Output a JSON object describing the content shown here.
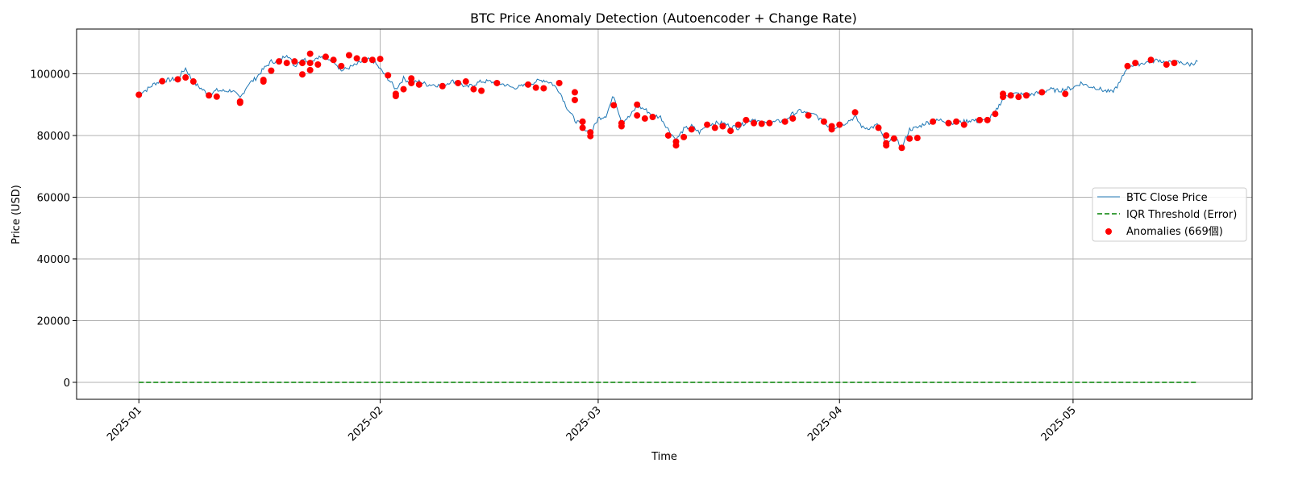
{
  "chart_data": {
    "type": "line",
    "title": "BTC Price Anomaly Detection (Autoencoder + Change Rate)",
    "xlabel": "Time",
    "ylabel": "Price (USD)",
    "x_tick_labels": [
      "2025-01",
      "2025-02",
      "2025-03",
      "2025-04",
      "2025-05"
    ],
    "x_tick_dates": [
      "2025-01-01",
      "2025-02-01",
      "2025-03-01",
      "2025-04-01",
      "2025-05-01"
    ],
    "xlim": [
      "2024-12-24",
      "2025-05-24"
    ],
    "ylim": [
      -5500,
      114500
    ],
    "y_ticks": [
      0,
      20000,
      40000,
      60000,
      80000,
      100000
    ],
    "y_tick_labels": [
      "0",
      "20000",
      "40000",
      "60000",
      "80000",
      "100000"
    ],
    "grid": true,
    "legend_position": "center-right",
    "legend": [
      {
        "label": "BTC Close Price",
        "style": "line",
        "color": "#1f77b4"
      },
      {
        "label": "IQR Threshold (Error)",
        "style": "dashed",
        "color": "#008000"
      },
      {
        "label": "Anomalies (669個)",
        "style": "marker",
        "color": "#ff0000"
      }
    ],
    "series": [
      {
        "name": "BTC Close Price",
        "color": "#1f77b4",
        "points": [
          [
            "2025-01-01",
            93800
          ],
          [
            "2025-01-02",
            94800
          ],
          [
            "2025-01-03",
            96800
          ],
          [
            "2025-01-04",
            97800
          ],
          [
            "2025-01-05",
            98000
          ],
          [
            "2025-01-06",
            98600
          ],
          [
            "2025-01-07",
            101800
          ],
          [
            "2025-01-08",
            97200
          ],
          [
            "2025-01-09",
            95200
          ],
          [
            "2025-01-10",
            93200
          ],
          [
            "2025-01-11",
            94600
          ],
          [
            "2025-01-12",
            94400
          ],
          [
            "2025-01-13",
            94600
          ],
          [
            "2025-01-14",
            92000
          ],
          [
            "2025-01-15",
            96500
          ],
          [
            "2025-01-16",
            98500
          ],
          [
            "2025-01-17",
            101500
          ],
          [
            "2025-01-18",
            104000
          ],
          [
            "2025-01-19",
            104000
          ],
          [
            "2025-01-20",
            106500
          ],
          [
            "2025-01-21",
            102500
          ],
          [
            "2025-01-22",
            105000
          ],
          [
            "2025-01-23",
            103800
          ],
          [
            "2025-01-24",
            105500
          ],
          [
            "2025-01-25",
            105000
          ],
          [
            "2025-01-26",
            104500
          ],
          [
            "2025-01-27",
            101000
          ],
          [
            "2025-01-28",
            102000
          ],
          [
            "2025-01-29",
            103000
          ],
          [
            "2025-01-30",
            104500
          ],
          [
            "2025-01-31",
            104500
          ],
          [
            "2025-02-01",
            101500
          ],
          [
            "2025-02-02",
            98500
          ],
          [
            "2025-02-03",
            95000
          ],
          [
            "2025-02-04",
            98500
          ],
          [
            "2025-02-05",
            97000
          ],
          [
            "2025-02-06",
            97500
          ],
          [
            "2025-02-07",
            96500
          ],
          [
            "2025-02-08",
            96500
          ],
          [
            "2025-02-09",
            96000
          ],
          [
            "2025-02-10",
            97500
          ],
          [
            "2025-02-11",
            97500
          ],
          [
            "2025-02-12",
            95500
          ],
          [
            "2025-02-13",
            96500
          ],
          [
            "2025-02-14",
            97500
          ],
          [
            "2025-02-15",
            97500
          ],
          [
            "2025-02-16",
            97000
          ],
          [
            "2025-02-17",
            96500
          ],
          [
            "2025-02-18",
            95500
          ],
          [
            "2025-02-19",
            95800
          ],
          [
            "2025-02-20",
            96500
          ],
          [
            "2025-02-21",
            97500
          ],
          [
            "2025-02-22",
            98000
          ],
          [
            "2025-02-23",
            97000
          ],
          [
            "2025-02-24",
            94500
          ],
          [
            "2025-02-25",
            89000
          ],
          [
            "2025-02-26",
            85000
          ],
          [
            "2025-02-27",
            83000
          ],
          [
            "2025-02-28",
            80500
          ],
          [
            "2025-03-01",
            85500
          ],
          [
            "2025-03-02",
            86500
          ],
          [
            "2025-03-03",
            93000
          ],
          [
            "2025-03-04",
            84500
          ],
          [
            "2025-03-05",
            86000
          ],
          [
            "2025-03-06",
            89500
          ],
          [
            "2025-03-07",
            88500
          ],
          [
            "2025-03-08",
            86500
          ],
          [
            "2025-03-09",
            86000
          ],
          [
            "2025-03-10",
            82000
          ],
          [
            "2025-03-11",
            78500
          ],
          [
            "2025-03-12",
            82000
          ],
          [
            "2025-03-13",
            83000
          ],
          [
            "2025-03-14",
            81000
          ],
          [
            "2025-03-15",
            83500
          ],
          [
            "2025-03-16",
            84000
          ],
          [
            "2025-03-17",
            84000
          ],
          [
            "2025-03-18",
            83000
          ],
          [
            "2025-03-19",
            82500
          ],
          [
            "2025-03-20",
            84500
          ],
          [
            "2025-03-21",
            85500
          ],
          [
            "2025-03-22",
            84000
          ],
          [
            "2025-03-23",
            84000
          ],
          [
            "2025-03-24",
            84500
          ],
          [
            "2025-03-25",
            85000
          ],
          [
            "2025-03-26",
            87000
          ],
          [
            "2025-03-27",
            88000
          ],
          [
            "2025-03-28",
            87000
          ],
          [
            "2025-03-29",
            86500
          ],
          [
            "2025-03-30",
            84000
          ],
          [
            "2025-03-31",
            82500
          ],
          [
            "2025-04-01",
            83000
          ],
          [
            "2025-04-02",
            84500
          ],
          [
            "2025-04-03",
            86000
          ],
          [
            "2025-04-04",
            82500
          ],
          [
            "2025-04-05",
            82500
          ],
          [
            "2025-04-06",
            83500
          ],
          [
            "2025-04-07",
            76500
          ],
          [
            "2025-04-08",
            79500
          ],
          [
            "2025-04-09",
            76000
          ],
          [
            "2025-04-10",
            82000
          ],
          [
            "2025-04-11",
            82500
          ],
          [
            "2025-04-12",
            84000
          ],
          [
            "2025-04-13",
            84500
          ],
          [
            "2025-04-14",
            85000
          ],
          [
            "2025-04-15",
            84500
          ],
          [
            "2025-04-16",
            84000
          ],
          [
            "2025-04-17",
            84500
          ],
          [
            "2025-04-18",
            85000
          ],
          [
            "2025-04-19",
            84500
          ],
          [
            "2025-04-20",
            85000
          ],
          [
            "2025-04-21",
            87500
          ],
          [
            "2025-04-22",
            92000
          ],
          [
            "2025-04-23",
            93500
          ],
          [
            "2025-04-24",
            93500
          ],
          [
            "2025-04-25",
            93000
          ],
          [
            "2025-04-26",
            93500
          ],
          [
            "2025-04-27",
            94000
          ],
          [
            "2025-04-28",
            95000
          ],
          [
            "2025-04-29",
            94500
          ],
          [
            "2025-04-30",
            95000
          ],
          [
            "2025-05-01",
            95500
          ],
          [
            "2025-05-02",
            97000
          ],
          [
            "2025-05-03",
            96000
          ],
          [
            "2025-05-04",
            95500
          ],
          [
            "2025-05-05",
            94500
          ],
          [
            "2025-05-06",
            94000
          ],
          [
            "2025-05-07",
            97000
          ],
          [
            "2025-05-08",
            102500
          ],
          [
            "2025-05-09",
            103000
          ],
          [
            "2025-05-10",
            103500
          ],
          [
            "2025-05-11",
            104000
          ],
          [
            "2025-05-12",
            104500
          ],
          [
            "2025-05-13",
            103500
          ],
          [
            "2025-05-14",
            103800
          ],
          [
            "2025-05-15",
            103500
          ],
          [
            "2025-05-16",
            103000
          ],
          [
            "2025-05-17",
            104000
          ]
        ]
      },
      {
        "name": "IQR Threshold (Error)",
        "color": "#008000",
        "points": [
          [
            "2025-01-01",
            0
          ],
          [
            "2025-05-17",
            0
          ]
        ]
      },
      {
        "name": "Anomalies (669個)",
        "color": "#ff0000",
        "type": "scatter",
        "points": [
          [
            "2025-01-01",
            93200
          ],
          [
            "2025-01-04",
            97600
          ],
          [
            "2025-01-06",
            98200
          ],
          [
            "2025-01-07",
            98800
          ],
          [
            "2025-01-08",
            97500
          ],
          [
            "2025-01-10",
            93000
          ],
          [
            "2025-01-11",
            92600
          ],
          [
            "2025-01-14",
            91000
          ],
          [
            "2025-01-14",
            90600
          ],
          [
            "2025-01-17",
            98000
          ],
          [
            "2025-01-17",
            97500
          ],
          [
            "2025-01-18",
            101000
          ],
          [
            "2025-01-19",
            104000
          ],
          [
            "2025-01-20",
            103500
          ],
          [
            "2025-01-21",
            104000
          ],
          [
            "2025-01-22",
            103500
          ],
          [
            "2025-01-22",
            99800
          ],
          [
            "2025-01-23",
            106500
          ],
          [
            "2025-01-23",
            103500
          ],
          [
            "2025-01-23",
            101200
          ],
          [
            "2025-01-24",
            103000
          ],
          [
            "2025-01-25",
            105500
          ],
          [
            "2025-01-26",
            104500
          ],
          [
            "2025-01-27",
            102500
          ],
          [
            "2025-01-28",
            106000
          ],
          [
            "2025-01-29",
            105000
          ],
          [
            "2025-01-30",
            104500
          ],
          [
            "2025-01-31",
            104500
          ],
          [
            "2025-02-01",
            104800
          ],
          [
            "2025-02-02",
            99500
          ],
          [
            "2025-02-03",
            93500
          ],
          [
            "2025-02-03",
            92800
          ],
          [
            "2025-02-04",
            95000
          ],
          [
            "2025-02-05",
            98500
          ],
          [
            "2025-02-05",
            97000
          ],
          [
            "2025-02-06",
            96500
          ],
          [
            "2025-02-09",
            96000
          ],
          [
            "2025-02-11",
            97000
          ],
          [
            "2025-02-12",
            97500
          ],
          [
            "2025-02-13",
            95000
          ],
          [
            "2025-02-14",
            94500
          ],
          [
            "2025-02-16",
            97000
          ],
          [
            "2025-02-20",
            96500
          ],
          [
            "2025-02-21",
            95500
          ],
          [
            "2025-02-22",
            95300
          ],
          [
            "2025-02-24",
            97000
          ],
          [
            "2025-02-26",
            94000
          ],
          [
            "2025-02-26",
            91500
          ],
          [
            "2025-02-27",
            84500
          ],
          [
            "2025-02-27",
            82500
          ],
          [
            "2025-02-28",
            81000
          ],
          [
            "2025-02-28",
            79800
          ],
          [
            "2025-03-03",
            89800
          ],
          [
            "2025-03-04",
            84000
          ],
          [
            "2025-03-04",
            83000
          ],
          [
            "2025-03-06",
            90000
          ],
          [
            "2025-03-06",
            86500
          ],
          [
            "2025-03-07",
            85500
          ],
          [
            "2025-03-08",
            86000
          ],
          [
            "2025-03-10",
            80000
          ],
          [
            "2025-03-11",
            78000
          ],
          [
            "2025-03-11",
            76800
          ],
          [
            "2025-03-12",
            79500
          ],
          [
            "2025-03-13",
            82000
          ],
          [
            "2025-03-15",
            83500
          ],
          [
            "2025-03-16",
            82500
          ],
          [
            "2025-03-17",
            83000
          ],
          [
            "2025-03-18",
            81500
          ],
          [
            "2025-03-19",
            83500
          ],
          [
            "2025-03-20",
            85000
          ],
          [
            "2025-03-21",
            84000
          ],
          [
            "2025-03-22",
            83800
          ],
          [
            "2025-03-23",
            84000
          ],
          [
            "2025-03-25",
            84500
          ],
          [
            "2025-03-26",
            85500
          ],
          [
            "2025-03-28",
            86500
          ],
          [
            "2025-03-30",
            84500
          ],
          [
            "2025-03-31",
            83000
          ],
          [
            "2025-03-31",
            82000
          ],
          [
            "2025-04-01",
            83500
          ],
          [
            "2025-04-03",
            87500
          ],
          [
            "2025-04-06",
            82500
          ],
          [
            "2025-04-07",
            80000
          ],
          [
            "2025-04-07",
            77500
          ],
          [
            "2025-04-07",
            76800
          ],
          [
            "2025-04-08",
            79000
          ],
          [
            "2025-04-09",
            76000
          ],
          [
            "2025-04-10",
            79000
          ],
          [
            "2025-04-11",
            79200
          ],
          [
            "2025-04-13",
            84500
          ],
          [
            "2025-04-15",
            84000
          ],
          [
            "2025-04-16",
            84500
          ],
          [
            "2025-04-17",
            83500
          ],
          [
            "2025-04-19",
            85000
          ],
          [
            "2025-04-20",
            85000
          ],
          [
            "2025-04-21",
            87000
          ],
          [
            "2025-04-22",
            93500
          ],
          [
            "2025-04-22",
            92500
          ],
          [
            "2025-04-23",
            93000
          ],
          [
            "2025-04-24",
            92500
          ],
          [
            "2025-04-25",
            93000
          ],
          [
            "2025-04-27",
            94000
          ],
          [
            "2025-04-30",
            93500
          ],
          [
            "2025-05-08",
            102500
          ],
          [
            "2025-05-09",
            103500
          ],
          [
            "2025-05-11",
            104500
          ],
          [
            "2025-05-13",
            103000
          ],
          [
            "2025-05-14",
            103500
          ]
        ]
      }
    ]
  }
}
